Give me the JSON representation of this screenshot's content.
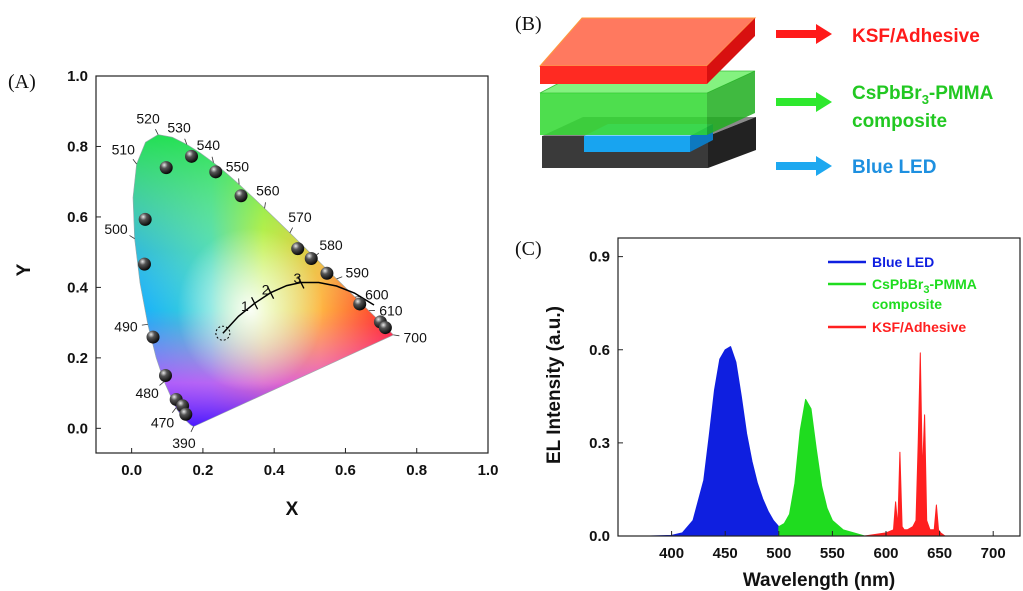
{
  "panel_labels": {
    "a": "(A)",
    "b": "(B)",
    "c": "(C)"
  },
  "colors": {
    "red": "#ff2020",
    "green": "#1fdc1f",
    "blue": "#0f1fe0",
    "led_blue": "#1da8f0",
    "dark": "#444444",
    "label_red": "#ff1a1a",
    "label_green": "#22c822",
    "label_blue": "#1e90e0"
  },
  "chart_data": [
    {
      "type": "scatter",
      "title": "",
      "xlabel": "X",
      "ylabel": "Y",
      "xlim": [
        -0.1,
        1.0
      ],
      "ylim": [
        -0.07,
        1.0
      ],
      "xticks": [
        "0.0",
        "0.2",
        "0.4",
        "0.6",
        "0.8",
        "1.0"
      ],
      "yticks": [
        "0.0",
        "0.2",
        "0.4",
        "0.6",
        "0.8",
        "1.0"
      ],
      "spectral_locus": {
        "x": [
          0.1738,
          0.1666,
          0.144,
          0.1241,
          0.0913,
          0.0687,
          0.0454,
          0.0235,
          0.0082,
          0.0039,
          0.0139,
          0.0389,
          0.0743,
          0.1142,
          0.1547,
          0.1929,
          0.2296,
          0.2658,
          0.3016,
          0.3373,
          0.3731,
          0.4087,
          0.4441,
          0.4788,
          0.5125,
          0.5448,
          0.5752,
          0.6029,
          0.627,
          0.6482,
          0.6658,
          0.6801,
          0.6915,
          0.7006,
          0.7079,
          0.714,
          0.7347
        ],
        "y": [
          0.005,
          0.0089,
          0.0297,
          0.0578,
          0.1327,
          0.2007,
          0.295,
          0.4127,
          0.5384,
          0.6548,
          0.7502,
          0.812,
          0.8338,
          0.8262,
          0.8059,
          0.7816,
          0.7543,
          0.7243,
          0.6923,
          0.6589,
          0.6245,
          0.5896,
          0.5547,
          0.5202,
          0.4866,
          0.4544,
          0.4242,
          0.3965,
          0.3725,
          0.3514,
          0.334,
          0.3197,
          0.3083,
          0.2993,
          0.292,
          0.2859,
          0.2653
        ]
      },
      "wavelength_labels": [
        {
          "text": "520",
          "x": 0.0743,
          "y": 0.8338
        },
        {
          "text": "530",
          "x": 0.1547,
          "y": 0.8059
        },
        {
          "text": "510",
          "x": 0.0139,
          "y": 0.7502
        },
        {
          "text": "540",
          "x": 0.2296,
          "y": 0.7543
        },
        {
          "text": "550",
          "x": 0.3016,
          "y": 0.6923
        },
        {
          "text": "500",
          "x": 0.0082,
          "y": 0.5384
        },
        {
          "text": "560",
          "x": 0.3731,
          "y": 0.6245
        },
        {
          "text": "570",
          "x": 0.4441,
          "y": 0.5547
        },
        {
          "text": "580",
          "x": 0.5125,
          "y": 0.4866
        },
        {
          "text": "590",
          "x": 0.5752,
          "y": 0.4242
        },
        {
          "text": "490",
          "x": 0.0454,
          "y": 0.295
        },
        {
          "text": "600",
          "x": 0.627,
          "y": 0.3725
        },
        {
          "text": "610",
          "x": 0.6658,
          "y": 0.334
        },
        {
          "text": "700",
          "x": 0.7347,
          "y": 0.2653
        },
        {
          "text": "480",
          "x": 0.0913,
          "y": 0.1327
        },
        {
          "text": "470",
          "x": 0.1241,
          "y": 0.0578
        },
        {
          "text": "390",
          "x": 0.1738,
          "y": 0.005
        }
      ],
      "points": {
        "x": [
          0.097,
          0.168,
          0.236,
          0.307,
          0.038,
          0.036,
          0.06,
          0.095,
          0.125,
          0.143,
          0.152,
          0.466,
          0.504,
          0.548,
          0.64,
          0.698,
          0.712
        ],
        "y": [
          0.74,
          0.772,
          0.728,
          0.66,
          0.593,
          0.466,
          0.259,
          0.15,
          0.082,
          0.064,
          0.04,
          0.51,
          0.482,
          0.44,
          0.353,
          0.302,
          0.286
        ]
      },
      "planckian_locus": {
        "x": [
          0.256,
          0.3,
          0.345,
          0.39,
          0.435,
          0.475,
          0.525,
          0.575,
          0.625,
          0.68
        ],
        "y": [
          0.27,
          0.318,
          0.355,
          0.385,
          0.405,
          0.414,
          0.414,
          0.404,
          0.384,
          0.35
        ]
      },
      "cct_labels": [
        {
          "text": "1",
          "x": 0.318,
          "y": 0.333
        },
        {
          "text": "2",
          "x": 0.376,
          "y": 0.38
        },
        {
          "text": "3",
          "x": 0.465,
          "y": 0.412
        }
      ],
      "white_point": {
        "x": 0.256,
        "y": 0.27
      }
    },
    {
      "type": "area",
      "title": "",
      "xlabel": "Wavelength (nm)",
      "ylabel": "EL Intensity (a.u.)",
      "xlim": [
        350,
        725
      ],
      "ylim": [
        0,
        0.96
      ],
      "xticks": [
        "400",
        "450",
        "500",
        "550",
        "600",
        "650",
        "700"
      ],
      "yticks": [
        "0.0",
        "0.3",
        "0.6",
        "0.9"
      ],
      "legend_position": "top-right",
      "series": [
        {
          "name": "Blue LED",
          "color": "#0f1fe0",
          "x": [
            350,
            380,
            400,
            410,
            420,
            430,
            435,
            440,
            445,
            450,
            455,
            460,
            465,
            470,
            475,
            480,
            485,
            490,
            495,
            500
          ],
          "y": [
            0.0,
            0.0,
            0.002,
            0.01,
            0.05,
            0.18,
            0.32,
            0.47,
            0.57,
            0.6,
            0.61,
            0.56,
            0.45,
            0.33,
            0.24,
            0.17,
            0.12,
            0.08,
            0.05,
            0.03
          ]
        },
        {
          "name": "CsPbBr3-PMMA composite",
          "color": "#1fdc1f",
          "x": [
            500,
            505,
            510,
            515,
            520,
            525,
            530,
            535,
            540,
            545,
            550,
            560,
            570,
            580
          ],
          "y": [
            0.03,
            0.04,
            0.07,
            0.17,
            0.34,
            0.44,
            0.41,
            0.28,
            0.16,
            0.09,
            0.05,
            0.02,
            0.01,
            0.0
          ]
        },
        {
          "name": "KSF/Adhesive",
          "color": "#ff2020",
          "x": [
            580,
            600,
            607,
            609,
            611,
            613,
            615,
            617,
            620,
            625,
            628,
            630,
            632,
            634,
            636,
            638,
            641,
            645,
            647,
            649,
            651,
            655,
            700,
            725
          ],
          "y": [
            0.0,
            0.01,
            0.02,
            0.11,
            0.03,
            0.27,
            0.03,
            0.02,
            0.02,
            0.03,
            0.05,
            0.3,
            0.59,
            0.2,
            0.39,
            0.05,
            0.02,
            0.02,
            0.1,
            0.02,
            0.01,
            0.0,
            0.0,
            0.0
          ]
        }
      ],
      "legend": [
        {
          "label": "Blue LED",
          "color": "#0f1fe0"
        },
        {
          "label": "CsPbBr",
          "sub": "3",
          "suffix": "-PMMA",
          "line2": "composite",
          "color": "#1fdc1f"
        },
        {
          "label": "KSF/Adhesive",
          "color": "#ff2020"
        }
      ]
    }
  ],
  "stack": {
    "layers": [
      {
        "label": "KSF/Adhesive"
      },
      {
        "label": "CsPbBr",
        "sub": "3",
        "suffix": "-PMMA",
        "line2": "composite"
      },
      {
        "label": "Blue LED"
      }
    ]
  }
}
